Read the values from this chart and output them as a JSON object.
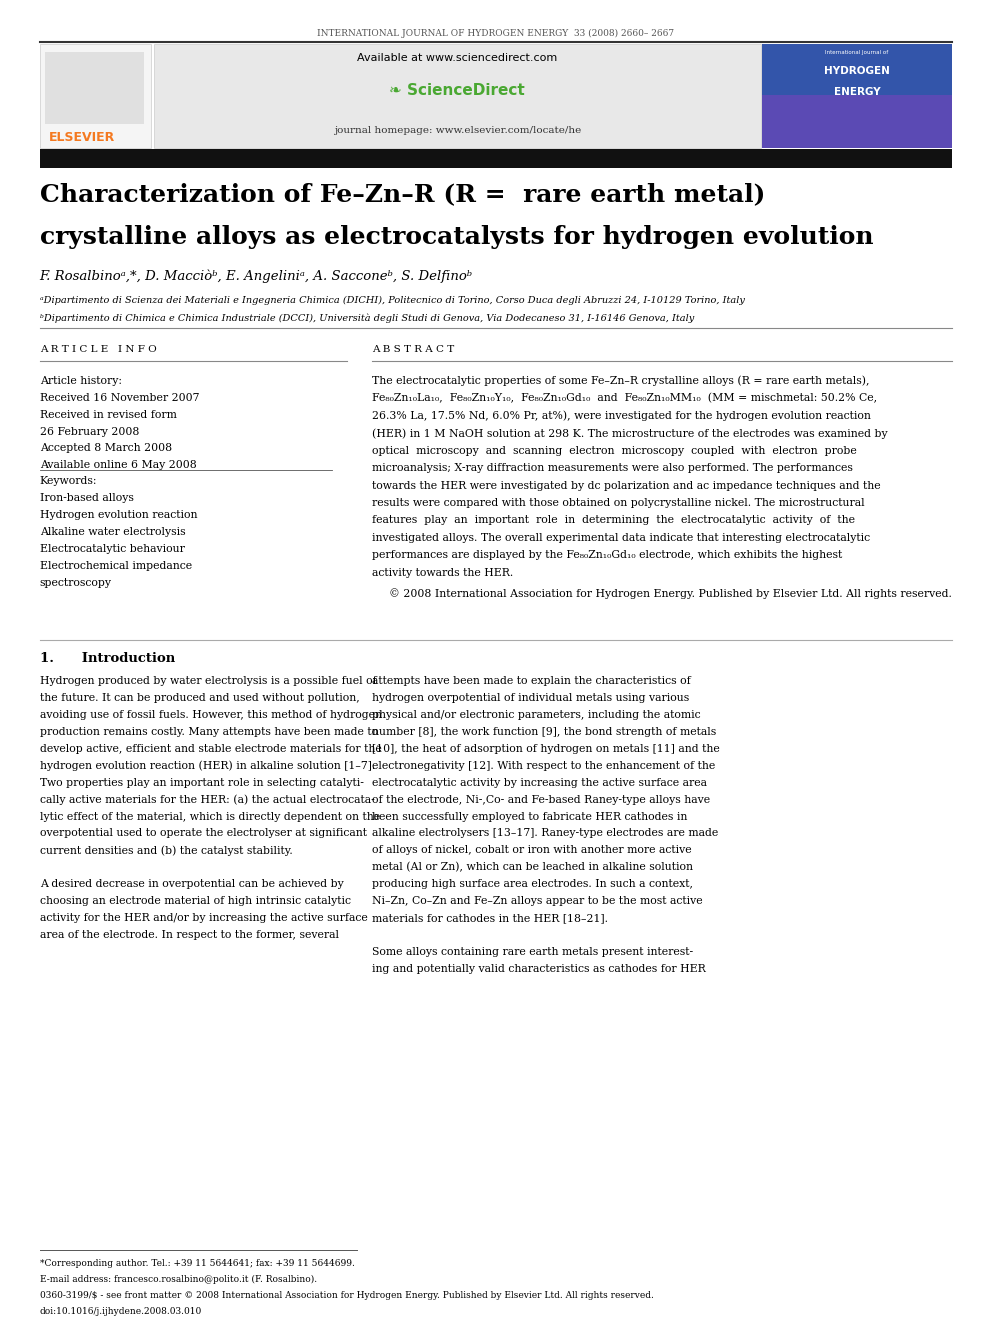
{
  "page_width": 9.92,
  "page_height": 13.23,
  "dpi": 100,
  "bg_color": "#ffffff",
  "journal_line": "INTERNATIONAL JOURNAL OF HYDROGEN ENERGY  33 (2008) 2660– 2667",
  "available_text": "Available at www.sciencedirect.com",
  "journal_homepage": "journal homepage: www.elsevier.com/locate/he",
  "title_line1": "Characterization of Fe–Zn–R (R =  rare earth metal)",
  "title_line2": "crystalline alloys as electrocatalysts for hydrogen evolution",
  "authors": "F. Rosalbinoᵃ,*, D. Macciòᵇ, E. Angeliniᵃ, A. Sacconeᵇ, S. Delfinoᵇ",
  "affil_a": "ᵃDipartimento di Scienza dei Materiali e Ingegneria Chimica (DICHI), Politecnico di Torino, Corso Duca degli Abruzzi 24, I-10129 Torino, Italy",
  "affil_b": "ᵇDipartimento di Chimica e Chimica Industriale (DCCI), Università degli Studi di Genova, Via Dodecaneso 31, I-16146 Genova, Italy",
  "article_info_header": "A R T I C L E   I N F O",
  "abstract_header": "A B S T R A C T",
  "article_history_label": "Article history:",
  "received1": "Received 16 November 2007",
  "received2": "Received in revised form",
  "revised_date": "26 February 2008",
  "accepted": "Accepted 8 March 2008",
  "available_online": "Available online 6 May 2008",
  "keywords_label": "Keywords:",
  "keyword1": "Iron-based alloys",
  "keyword2": "Hydrogen evolution reaction",
  "keyword3": "Alkaline water electrolysis",
  "keyword4": "Electrocatalytic behaviour",
  "keyword5": "Electrochemical impedance",
  "keyword5b": "spectroscopy",
  "copyright_text": "© 2008 International Association for Hydrogen Energy. Published by Elsevier Ltd. All rights reserved.",
  "intro_header": "1.      Introduction",
  "footnote1": "*Corresponding author. Tel.: +39 11 5644641; fax: +39 11 5644699.",
  "footnote2": "E-mail address: francesco.rosalbino@polito.it (F. Rosalbino).",
  "footnote3": "0360-3199/$ - see front matter © 2008 International Association for Hydrogen Energy. Published by Elsevier Ltd. All rights reserved.",
  "footnote4": "doi:10.1016/j.ijhydene.2008.03.010",
  "elsevier_orange": "#f47920",
  "sd_green": "#4aa832",
  "header_bg": "#e8e8e8"
}
